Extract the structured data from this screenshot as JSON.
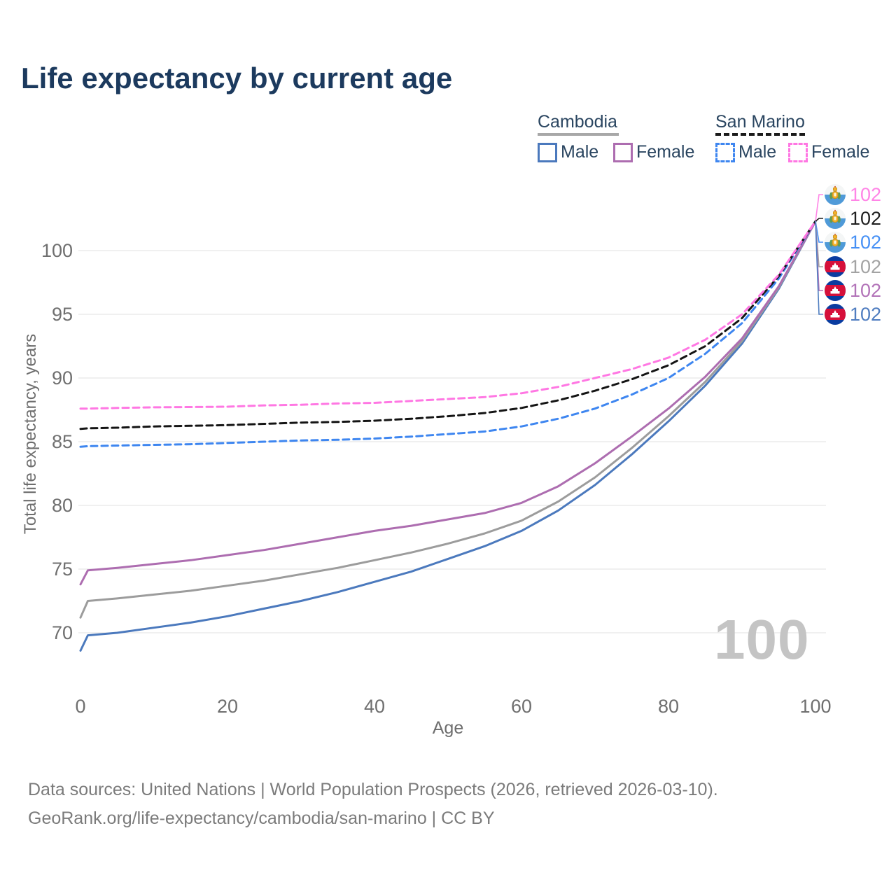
{
  "title": "Life expectancy by current age",
  "legend": {
    "groups": [
      {
        "name": "Cambodia",
        "line_style": "solid",
        "underline_color": "#a8a8a8",
        "items": [
          {
            "label": "Male",
            "color": "#4b79bd",
            "dashed": false
          },
          {
            "label": "Female",
            "color": "#ad6db0",
            "dashed": false
          }
        ]
      },
      {
        "name": "San Marino",
        "line_style": "dashed",
        "underline_color": "#1b1b1b",
        "items": [
          {
            "label": "Male",
            "color": "#3e86f0",
            "dashed": true
          },
          {
            "label": "Female",
            "color": "#ff77e3",
            "dashed": true
          }
        ]
      }
    ]
  },
  "chart_data": {
    "type": "line",
    "title": "Life expectancy by current age",
    "xlabel": "Age",
    "ylabel": "Total life expectancy, years",
    "xlim": [
      0,
      100
    ],
    "ylim": [
      67.5,
      103.5
    ],
    "xticks": [
      0,
      20,
      40,
      60,
      80,
      100
    ],
    "yticks": [
      70,
      75,
      80,
      85,
      90,
      95,
      100
    ],
    "grid": "horizontal-only",
    "legend_position": "top-right",
    "age_counter_watermark": "100",
    "x": [
      0,
      1,
      5,
      10,
      15,
      20,
      25,
      30,
      35,
      40,
      45,
      50,
      55,
      60,
      65,
      70,
      75,
      80,
      85,
      90,
      95,
      100
    ],
    "series": [
      {
        "name": "Cambodia Male",
        "country": "Cambodia",
        "sex": "male",
        "color": "#4b79bd",
        "dashed": false,
        "values": [
          68.6,
          69.8,
          70.0,
          70.4,
          70.8,
          71.3,
          71.9,
          72.5,
          73.2,
          74.0,
          74.8,
          75.8,
          76.8,
          78.0,
          79.6,
          81.6,
          84.0,
          86.6,
          89.4,
          92.7,
          97.0,
          102.3
        ]
      },
      {
        "name": "Cambodia Overall",
        "country": "Cambodia",
        "sex": "both",
        "color": "#9c9c9c",
        "dashed": false,
        "values": [
          71.2,
          72.5,
          72.7,
          73.0,
          73.3,
          73.7,
          74.1,
          74.6,
          75.1,
          75.7,
          76.3,
          77.0,
          77.8,
          78.8,
          80.3,
          82.2,
          84.5,
          87.0,
          89.7,
          92.9,
          97.1,
          102.3
        ]
      },
      {
        "name": "Cambodia Female",
        "country": "Cambodia",
        "sex": "female",
        "color": "#ad6db0",
        "dashed": false,
        "values": [
          73.8,
          74.9,
          75.1,
          75.4,
          75.7,
          76.1,
          76.5,
          77.0,
          77.5,
          78.0,
          78.4,
          78.9,
          79.4,
          80.2,
          81.5,
          83.3,
          85.4,
          87.6,
          90.1,
          93.1,
          97.2,
          102.3
        ]
      },
      {
        "name": "San Marino Male",
        "country": "San Marino",
        "sex": "male",
        "color": "#3e86f0",
        "dashed": true,
        "values": [
          84.6,
          84.65,
          84.7,
          84.75,
          84.8,
          84.9,
          85.0,
          85.1,
          85.15,
          85.25,
          85.4,
          85.6,
          85.8,
          86.2,
          86.8,
          87.6,
          88.7,
          90.0,
          91.9,
          94.3,
          97.8,
          102.3
        ]
      },
      {
        "name": "San Marino Overall",
        "country": "San Marino",
        "sex": "both",
        "color": "#141414",
        "dashed": true,
        "values": [
          86.0,
          86.05,
          86.1,
          86.2,
          86.25,
          86.3,
          86.4,
          86.5,
          86.55,
          86.65,
          86.8,
          87.0,
          87.25,
          87.65,
          88.25,
          89.0,
          89.9,
          91.0,
          92.5,
          94.7,
          98.0,
          102.3
        ]
      },
      {
        "name": "San Marino Female",
        "country": "San Marino",
        "sex": "female",
        "color": "#ff77e3",
        "dashed": true,
        "values": [
          87.6,
          87.6,
          87.65,
          87.7,
          87.72,
          87.75,
          87.85,
          87.9,
          88.0,
          88.05,
          88.2,
          88.35,
          88.5,
          88.8,
          89.3,
          90.0,
          90.7,
          91.6,
          93.0,
          95.0,
          98.1,
          102.3
        ]
      }
    ]
  },
  "end_labels": {
    "rows": [
      {
        "value": "102",
        "series": "San Marino Female",
        "flag": "san-marino",
        "color": "#ff85e6"
      },
      {
        "value": "102",
        "series": "San Marino Overall",
        "flag": "san-marino",
        "color": "#1f1f1f"
      },
      {
        "value": "102",
        "series": "San Marino Male",
        "flag": "san-marino",
        "color": "#4690f5"
      },
      {
        "value": "102",
        "series": "Cambodia Overall",
        "flag": "cambodia",
        "color": "#a3a3a3"
      },
      {
        "value": "102",
        "series": "Cambodia Female",
        "flag": "cambodia",
        "color": "#b273b8"
      },
      {
        "value": "102",
        "series": "Cambodia Male",
        "flag": "cambodia",
        "color": "#4f7dc0"
      }
    ]
  },
  "footer": {
    "line1": "Data sources: United Nations | World Population Prospects (2026, retrieved 2026-03-10).",
    "line2": "GeoRank.org/life-expectancy/cambodia/san-marino | CC BY"
  }
}
